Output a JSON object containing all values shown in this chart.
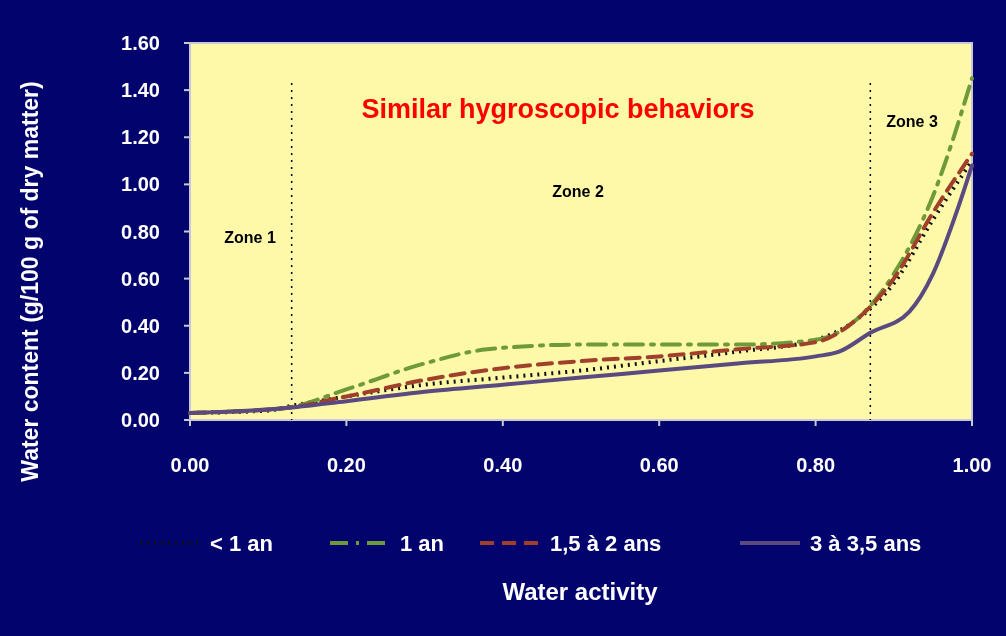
{
  "chart_data": {
    "type": "line",
    "title": "Similar hygroscopic behaviors",
    "xlabel": "Water activity",
    "ylabel": "Water content (g/100 g of dry matter)",
    "xlim": [
      0,
      1
    ],
    "ylim": [
      0,
      1.6
    ],
    "xticks": [
      {
        "value": 0,
        "label": "0.00"
      },
      {
        "value": 0.2,
        "label": "0.20"
      },
      {
        "value": 0.4,
        "label": "0.40"
      },
      {
        "value": 0.6,
        "label": "0.60"
      },
      {
        "value": 0.8,
        "label": "0.80"
      },
      {
        "value": 1,
        "label": "1.00"
      }
    ],
    "yticks": [
      {
        "value": 0,
        "label": "0.00"
      },
      {
        "value": 0.2,
        "label": "0.20"
      },
      {
        "value": 0.4,
        "label": "0.40"
      },
      {
        "value": 0.6,
        "label": "0.60"
      },
      {
        "value": 0.8,
        "label": "0.80"
      },
      {
        "value": 1,
        "label": "1.00"
      },
      {
        "value": 1.2,
        "label": "1.20"
      },
      {
        "value": 1.4,
        "label": "1.40"
      },
      {
        "value": 1.6,
        "label": "1.60"
      }
    ],
    "grid": false,
    "legend": "bottom",
    "series": [
      {
        "name": "< 1 an",
        "color": "#111111",
        "line_style": "dotted",
        "x": [
          0,
          0.1,
          0.13,
          0.2,
          0.3,
          0.4,
          0.5,
          0.6,
          0.7,
          0.8,
          0.85,
          0.9,
          0.95,
          1.0
        ],
        "values": [
          0.03,
          0.04,
          0.06,
          0.1,
          0.15,
          0.18,
          0.21,
          0.25,
          0.29,
          0.34,
          0.42,
          0.58,
          0.85,
          1.1
        ]
      },
      {
        "name": "1 an",
        "color": "#6e9a3a",
        "line_style": "dashdot",
        "x": [
          0,
          0.12,
          0.2,
          0.3,
          0.38,
          0.5,
          0.6,
          0.7,
          0.8,
          0.85,
          0.9,
          0.95,
          1.0
        ],
        "values": [
          0.03,
          0.05,
          0.13,
          0.24,
          0.3,
          0.32,
          0.32,
          0.32,
          0.34,
          0.42,
          0.62,
          0.95,
          1.45
        ]
      },
      {
        "name": "1,5 à 2 ans",
        "color": "#a0402a",
        "line_style": "dashed",
        "x": [
          0,
          0.12,
          0.2,
          0.3,
          0.4,
          0.5,
          0.6,
          0.7,
          0.8,
          0.85,
          0.9,
          0.95,
          1.0
        ],
        "values": [
          0.03,
          0.05,
          0.1,
          0.17,
          0.22,
          0.25,
          0.27,
          0.3,
          0.33,
          0.42,
          0.6,
          0.88,
          1.13
        ]
      },
      {
        "name": "3 à 3,5 ans",
        "color": "#5a4a80",
        "line_style": "solid",
        "x": [
          0,
          0.12,
          0.2,
          0.3,
          0.4,
          0.5,
          0.6,
          0.7,
          0.8,
          0.83,
          0.87,
          0.92,
          0.95,
          0.98,
          1.0
        ],
        "values": [
          0.03,
          0.05,
          0.08,
          0.12,
          0.15,
          0.18,
          0.21,
          0.24,
          0.27,
          0.29,
          0.37,
          0.46,
          0.62,
          0.88,
          1.08
        ]
      }
    ],
    "ref_lines": [
      {
        "axis": "x",
        "value": 0.13,
        "color": "#000000",
        "line_style": "dotted"
      },
      {
        "axis": "x",
        "value": 0.87,
        "color": "#000000",
        "line_style": "dotted"
      }
    ],
    "annotations": [
      "Zone 1",
      "Zone 2",
      "Zone 3"
    ]
  }
}
